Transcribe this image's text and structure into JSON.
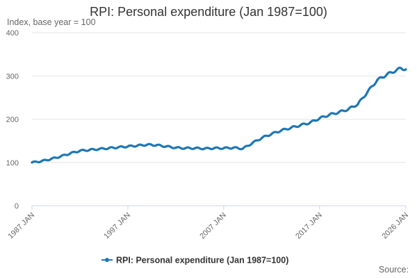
{
  "title": "RPI: Personal expenditure (Jan 1987=100)",
  "source_label": "Source:",
  "chart_data": {
    "type": "line",
    "title": "RPI: Personal expenditure (Jan 1987=100)",
    "ylabel": "Index, base year = 100",
    "xlabel": "",
    "ylim": [
      0,
      400
    ],
    "yticks": [
      0,
      100,
      200,
      300,
      400
    ],
    "xlim": [
      1987.0,
      2026.0
    ],
    "xticks": [
      {
        "x": 1987.0,
        "label": "1987 JAN"
      },
      {
        "x": 1997.0,
        "label": "1997 JAN"
      },
      {
        "x": 2007.0,
        "label": "2007 JAN"
      },
      {
        "x": 2017.0,
        "label": "2017 JAN"
      },
      {
        "x": 2026.0,
        "label": "2026 JAN"
      }
    ],
    "grid": true,
    "legend_position": "bottom",
    "series": [
      {
        "name": "RPI: Personal expenditure (Jan 1987=100)",
        "color": "#1f77b4",
        "x": [
          1987.0,
          1988.0,
          1989.0,
          1990.0,
          1991.0,
          1992.0,
          1993.0,
          1994.0,
          1995.0,
          1996.0,
          1997.0,
          1998.0,
          1999.0,
          2000.0,
          2001.0,
          2002.0,
          2003.0,
          2004.0,
          2005.0,
          2006.0,
          2007.0,
          2008.0,
          2009.0,
          2010.0,
          2011.0,
          2012.0,
          2013.0,
          2014.0,
          2015.0,
          2016.0,
          2017.0,
          2018.0,
          2019.0,
          2020.0,
          2021.0,
          2022.0,
          2023.0,
          2024.0,
          2025.0,
          2025.5,
          2026.0
        ],
        "y": [
          100,
          103,
          108,
          114,
          121,
          127,
          129,
          131,
          133,
          135,
          137,
          139,
          141,
          140,
          137,
          134,
          133,
          133,
          132,
          133,
          133,
          134,
          132,
          145,
          157,
          166,
          174,
          180,
          186,
          192,
          202,
          210,
          216,
          223,
          235,
          263,
          290,
          303,
          313,
          318,
          315
        ]
      }
    ]
  }
}
